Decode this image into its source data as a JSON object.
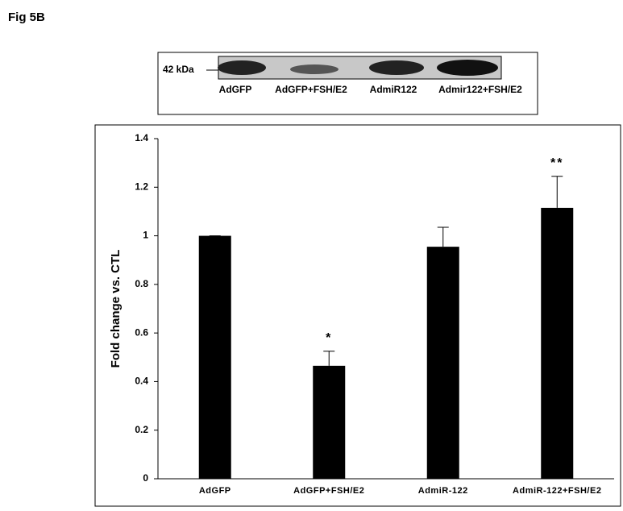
{
  "figure_label": "Fig 5B",
  "blot": {
    "marker": "42 kDa",
    "lanes": [
      "AdGFP",
      "AdGFP+FSH/E2",
      "AdmiR122",
      "Admir122+FSH/E2"
    ]
  },
  "chart_data": {
    "type": "bar",
    "ylabel": "Fold change vs. CTL",
    "categories": [
      "AdGFP",
      "AdGFP+FSH/E2",
      "AdmiR-122",
      "AdmiR-122+FSH/E2"
    ],
    "values": [
      1,
      0.465,
      0.955,
      1.115
    ],
    "errors": [
      0,
      0.06,
      0.08,
      0.13
    ],
    "annotations": [
      null,
      "*",
      null,
      "**"
    ],
    "color": "#000000",
    "ylim": [
      0,
      1.4
    ],
    "yticks": [
      0,
      0.2,
      0.4,
      0.6,
      0.8,
      1,
      1.2,
      1.4
    ],
    "grid": false
  }
}
